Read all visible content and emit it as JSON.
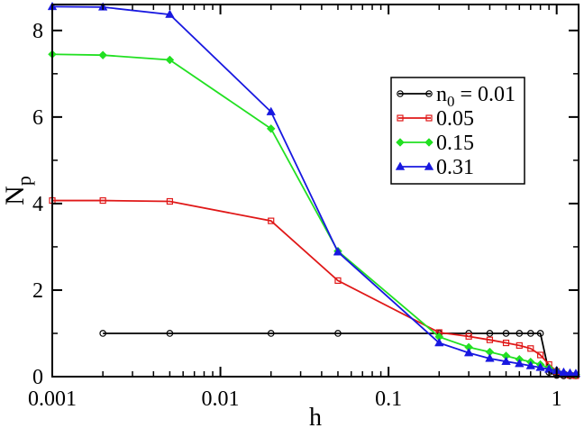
{
  "chart_data": {
    "type": "line",
    "title": "",
    "xlabel": "h",
    "ylabel": "N",
    "ylabel_subscript": "p",
    "x_scale": "log",
    "xlim": [
      0.001,
      1.35
    ],
    "ylim": [
      0,
      8.6
    ],
    "x_ticks": [
      {
        "value": 0.001,
        "label": "0.001"
      },
      {
        "value": 0.01,
        "label": "0.01"
      },
      {
        "value": 0.1,
        "label": "0.1"
      },
      {
        "value": 1,
        "label": "1"
      }
    ],
    "y_ticks": [
      {
        "value": 0,
        "label": "0"
      },
      {
        "value": 2,
        "label": "2"
      },
      {
        "value": 4,
        "label": "4"
      },
      {
        "value": 6,
        "label": "6"
      },
      {
        "value": 8,
        "label": "8"
      }
    ],
    "grid": false,
    "legend_position": "right",
    "series": [
      {
        "name": "n",
        "name_subscript": "0",
        "name_suffix": " = 0.01",
        "label": "n0 = 0.01",
        "color": "#000000",
        "marker": "circle",
        "x": [
          0.002,
          0.005,
          0.02,
          0.05,
          0.2,
          0.3,
          0.4,
          0.5,
          0.6,
          0.7,
          0.8,
          0.9,
          1.0,
          1.1,
          1.2,
          1.3
        ],
        "y": [
          1.0,
          1.0,
          1.0,
          1.0,
          1.0,
          1.0,
          1.0,
          1.0,
          1.0,
          1.0,
          1.0,
          0.1,
          0.03,
          0.02,
          0.02,
          0.02
        ]
      },
      {
        "name": "0.05",
        "label": "0.05",
        "color": "#e01818",
        "marker": "square",
        "x": [
          0.001,
          0.002,
          0.005,
          0.02,
          0.05,
          0.2,
          0.3,
          0.4,
          0.5,
          0.6,
          0.7,
          0.8,
          0.9,
          1.0,
          1.1,
          1.2,
          1.3
        ],
        "y": [
          4.07,
          4.07,
          4.05,
          3.6,
          2.22,
          1.02,
          0.93,
          0.85,
          0.78,
          0.72,
          0.65,
          0.5,
          0.28,
          0.12,
          0.05,
          0.03,
          0.02
        ]
      },
      {
        "name": "0.15",
        "label": "0.15",
        "color": "#22e022",
        "marker": "diamond",
        "x": [
          0.001,
          0.002,
          0.005,
          0.02,
          0.05,
          0.2,
          0.3,
          0.4,
          0.5,
          0.6,
          0.7,
          0.8,
          0.9,
          1.0,
          1.1,
          1.2,
          1.3
        ],
        "y": [
          7.45,
          7.43,
          7.32,
          5.73,
          2.9,
          0.92,
          0.68,
          0.57,
          0.48,
          0.4,
          0.34,
          0.28,
          0.2,
          0.13,
          0.08,
          0.06,
          0.05
        ]
      },
      {
        "name": "0.31",
        "label": "0.31",
        "color": "#1818e0",
        "marker": "triangle",
        "x": [
          0.001,
          0.002,
          0.005,
          0.02,
          0.05,
          0.2,
          0.3,
          0.4,
          0.5,
          0.6,
          0.7,
          0.8,
          0.9,
          1.0,
          1.1,
          1.2,
          1.3
        ],
        "y": [
          8.55,
          8.54,
          8.37,
          6.12,
          2.88,
          0.78,
          0.55,
          0.42,
          0.35,
          0.3,
          0.25,
          0.21,
          0.17,
          0.14,
          0.1,
          0.08,
          0.07
        ]
      }
    ]
  }
}
